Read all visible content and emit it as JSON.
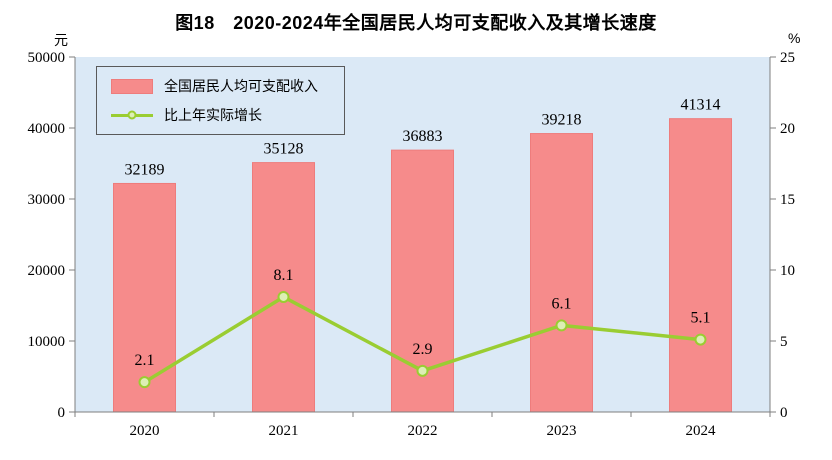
{
  "title": "图18　2020-2024年全国居民人均可支配收入及其增长速度",
  "left_axis_unit": "元",
  "right_axis_unit": "%",
  "legend": {
    "bar_label": "全国居民人均可支配收入",
    "line_label": "比上年实际增长"
  },
  "colors": {
    "bar_fill": "#F68B8B",
    "bar_stroke": "#ee7c7c",
    "line": "#9ACD32",
    "marker_fill": "#DDEFB5",
    "plot_bg": "#DBE9F6",
    "axis": "#7f7f7f",
    "text": "#000000"
  },
  "chart_data": {
    "type": "bar+line",
    "title": "图18　2020-2024年全国居民人均可支配收入及其增长速度",
    "categories": [
      "2020",
      "2021",
      "2022",
      "2023",
      "2024"
    ],
    "series": [
      {
        "name": "全国居民人均可支配收入",
        "type": "bar",
        "axis": "left",
        "values": [
          32189,
          35128,
          36883,
          39218,
          41314
        ]
      },
      {
        "name": "比上年实际增长",
        "type": "line",
        "axis": "right",
        "values": [
          2.1,
          8.1,
          2.9,
          6.1,
          5.1
        ]
      }
    ],
    "left_axis": {
      "label": "元",
      "min": 0,
      "max": 50000,
      "tick_step": 10000,
      "ticks": [
        0,
        10000,
        20000,
        30000,
        40000,
        50000
      ]
    },
    "right_axis": {
      "label": "%",
      "min": 0,
      "max": 25,
      "tick_step": 5,
      "ticks": [
        0,
        5,
        10,
        15,
        20,
        25
      ]
    },
    "grid": false,
    "legend_position": "top-left-inside"
  }
}
